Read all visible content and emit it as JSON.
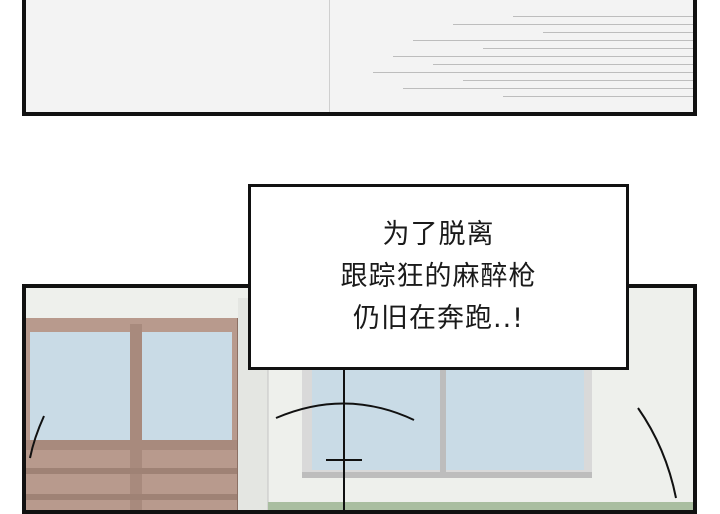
{
  "caption": {
    "lines": [
      "为了脱离",
      "跟踪狂的麻醉枪",
      "仍旧在奔跑..!"
    ]
  },
  "colors": {
    "border": "#111111",
    "sky": "#c9dbe6",
    "frame_wood": "#b89a8d",
    "window_frame": "#d9d9d9",
    "wall": "#eef0ec",
    "floor_strip": "#a9bea0"
  }
}
